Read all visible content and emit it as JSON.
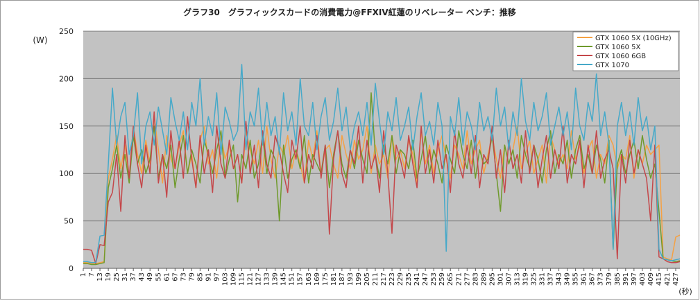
{
  "chart_data": {
    "type": "line",
    "title": "グラフ30　グラフィックスカードの消費電力@FFXIV紅蓮のリベレーター ベンチ：推移",
    "y_label": "(W)",
    "x_label": "(秒)",
    "ylim": [
      0,
      250
    ],
    "yticks": [
      0,
      50,
      100,
      150,
      200,
      250
    ],
    "xlim": [
      1,
      430
    ],
    "xticks": [
      1,
      7,
      13,
      19,
      25,
      31,
      37,
      43,
      49,
      55,
      61,
      67,
      73,
      79,
      85,
      91,
      97,
      103,
      109,
      115,
      121,
      127,
      133,
      139,
      145,
      151,
      157,
      163,
      169,
      175,
      181,
      187,
      193,
      199,
      205,
      211,
      217,
      223,
      229,
      235,
      241,
      247,
      253,
      259,
      265,
      271,
      277,
      283,
      289,
      295,
      301,
      307,
      313,
      319,
      325,
      331,
      337,
      343,
      349,
      355,
      361,
      367,
      373,
      379,
      385,
      391,
      397,
      403,
      409,
      415,
      421,
      427
    ],
    "grid": true,
    "legend": "upper right",
    "x": [
      1,
      4,
      7,
      10,
      13,
      16,
      19,
      22,
      25,
      28,
      31,
      34,
      37,
      40,
      43,
      46,
      49,
      52,
      55,
      58,
      61,
      64,
      67,
      70,
      73,
      76,
      79,
      82,
      85,
      88,
      91,
      94,
      97,
      100,
      103,
      106,
      109,
      112,
      115,
      118,
      121,
      124,
      127,
      130,
      133,
      136,
      139,
      142,
      145,
      148,
      151,
      154,
      157,
      160,
      163,
      166,
      169,
      172,
      175,
      178,
      181,
      184,
      187,
      190,
      193,
      196,
      199,
      202,
      205,
      208,
      211,
      214,
      217,
      220,
      223,
      226,
      229,
      232,
      235,
      238,
      241,
      244,
      247,
      250,
      253,
      256,
      259,
      262,
      265,
      268,
      271,
      274,
      277,
      280,
      283,
      286,
      289,
      292,
      295,
      298,
      301,
      304,
      307,
      310,
      313,
      316,
      319,
      322,
      325,
      328,
      331,
      334,
      337,
      340,
      343,
      346,
      349,
      352,
      355,
      358,
      361,
      364,
      367,
      370,
      373,
      376,
      379,
      382,
      385,
      388,
      391,
      394,
      397,
      400,
      403,
      406,
      409,
      412,
      415,
      418,
      421,
      424,
      427,
      430
    ],
    "series": [
      {
        "name": "GTX 1060 5X (10GHz)",
        "color": "#f5a143",
        "values": [
          6,
          6,
          5,
          5,
          6,
          7,
          95,
          115,
          140,
          105,
          130,
          95,
          150,
          120,
          100,
          135,
          110,
          160,
          125,
          90,
          140,
          115,
          105,
          130,
          145,
          100,
          120,
          85,
          135,
          150,
          110,
          125,
          95,
          140,
          115,
          130,
          105,
          120,
          90,
          145,
          125,
          110,
          135,
          100,
          150,
          115,
          95,
          130,
          120,
          140,
          105,
          125,
          110,
          90,
          135,
          115,
          145,
          100,
          125,
          130,
          110,
          95,
          140,
          120,
          105,
          135,
          115,
          125,
          150,
          100,
          130,
          110,
          120,
          95,
          140,
          115,
          125,
          105,
          135,
          120,
          90,
          145,
          110,
          130,
          100,
          125,
          140,
          115,
          95,
          130,
          120,
          105,
          145,
          110,
          125,
          135,
          100,
          120,
          140,
          115,
          95,
          130,
          110,
          125,
          150,
          105,
          120,
          135,
          100,
          115,
          130,
          90,
          140,
          125,
          110,
          120,
          105,
          145,
          115,
          130,
          100,
          125,
          135,
          95,
          120,
          110,
          140,
          130,
          105,
          120,
          115,
          140,
          95,
          125,
          110,
          130,
          120,
          125,
          130,
          12,
          10,
          9,
          33,
          35
        ]
      },
      {
        "name": "GTX 1060 5X",
        "color": "#6f9a2c",
        "values": [
          5,
          5,
          4,
          4,
          5,
          6,
          85,
          105,
          130,
          95,
          120,
          90,
          140,
          110,
          125,
          100,
          115,
          150,
          95,
          120,
          105,
          130,
          85,
          115,
          140,
          100,
          125,
          110,
          90,
          135,
          120,
          100,
          125,
          145,
          95,
          115,
          130,
          70,
          120,
          105,
          135,
          95,
          110,
          140,
          100,
          125,
          115,
          50,
          130,
          95,
          115,
          125,
          105,
          140,
          90,
          120,
          110,
          100,
          130,
          85,
          120,
          145,
          110,
          95,
          125,
          105,
          135,
          115,
          100,
          185,
          120,
          95,
          130,
          110,
          140,
          100,
          125,
          120,
          105,
          135,
          95,
          115,
          140,
          100,
          125,
          110,
          90,
          130,
          115,
          100,
          145,
          120,
          105,
          135,
          95,
          125,
          110,
          115,
          140,
          100,
          60,
          130,
          110,
          125,
          95,
          140,
          120,
          105,
          130,
          115,
          90,
          125,
          145,
          100,
          120,
          110,
          135,
          95,
          125,
          140,
          105,
          120,
          100,
          130,
          115,
          90,
          135,
          20,
          110,
          125,
          100,
          120,
          135,
          105,
          140,
          115,
          95,
          110,
          60,
          10,
          9,
          8,
          7,
          8
        ]
      },
      {
        "name": "GTX 1060 6GB",
        "color": "#c4474a",
        "values": [
          20,
          20,
          19,
          5,
          25,
          24,
          70,
          80,
          120,
          60,
          140,
          95,
          150,
          110,
          85,
          130,
          100,
          165,
          90,
          120,
          75,
          145,
          105,
          135,
          95,
          160,
          115,
          85,
          140,
          100,
          125,
          80,
          150,
          110,
          95,
          135,
          105,
          120,
          90,
          155,
          100,
          130,
          85,
          145,
          110,
          95,
          140,
          125,
          100,
          80,
          135,
          115,
          150,
          90,
          120,
          105,
          140,
          95,
          130,
          36,
          115,
          145,
          100,
          85,
          125,
          110,
          150,
          90,
          135,
          105,
          120,
          80,
          145,
          100,
          37,
          130,
          115,
          95,
          140,
          110,
          85,
          150,
          100,
          125,
          90,
          135,
          105,
          120,
          80,
          145,
          110,
          95,
          130,
          100,
          140,
          85,
          120,
          110,
          150,
          95,
          125,
          80,
          135,
          105,
          120,
          90,
          145,
          100,
          130,
          85,
          115,
          140,
          95,
          125,
          105,
          150,
          90,
          120,
          110,
          135,
          85,
          130,
          100,
          145,
          95,
          115,
          125,
          105,
          10,
          120,
          90,
          135,
          100,
          125,
          110,
          95,
          50,
          130,
          12,
          10,
          7,
          6,
          6,
          7
        ]
      },
      {
        "name": "GTX 1070",
        "color": "#46a9c9",
        "values": [
          7,
          7,
          6,
          6,
          34,
          35,
          110,
          190,
          130,
          160,
          175,
          120,
          140,
          185,
          110,
          150,
          165,
          130,
          170,
          145,
          120,
          180,
          155,
          135,
          165,
          125,
          175,
          150,
          200,
          130,
          160,
          140,
          185,
          120,
          170,
          155,
          135,
          145,
          215,
          125,
          165,
          150,
          190,
          130,
          175,
          140,
          160,
          120,
          185,
          145,
          165,
          130,
          200,
          150,
          140,
          175,
          125,
          160,
          180,
          135,
          155,
          190,
          145,
          170,
          125,
          150,
          165,
          140,
          175,
          130,
          195,
          155,
          120,
          165,
          145,
          180,
          135,
          150,
          170,
          125,
          160,
          185,
          140,
          155,
          130,
          175,
          150,
          18,
          160,
          140,
          180,
          130,
          165,
          150,
          125,
          175,
          145,
          160,
          135,
          190,
          150,
          170,
          125,
          165,
          140,
          200,
          155,
          135,
          175,
          145,
          160,
          185,
          130,
          150,
          170,
          140,
          165,
          125,
          190,
          150,
          135,
          175,
          155,
          205,
          140,
          165,
          130,
          20,
          150,
          175,
          140,
          165,
          130,
          180,
          145,
          160,
          125,
          150,
          20,
          10,
          9,
          8,
          9,
          10
        ]
      }
    ]
  }
}
